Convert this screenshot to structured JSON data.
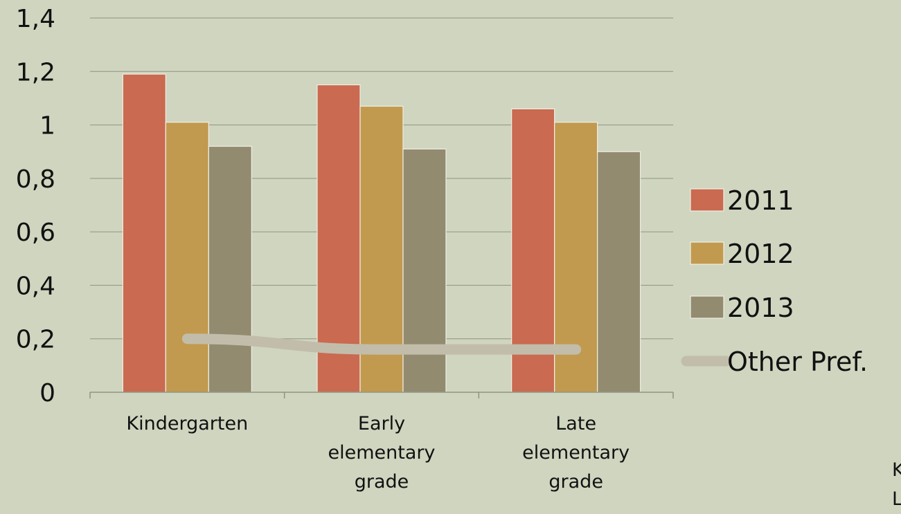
{
  "chart_data": {
    "type": "bar",
    "categories": [
      [
        "Kindergarten"
      ],
      [
        "Early",
        "elementary",
        "grade"
      ],
      [
        "Late",
        "elementary",
        "grade"
      ]
    ],
    "series": [
      {
        "name": "2011",
        "type": "bar",
        "color": "#c96a51",
        "values": [
          1.19,
          1.15,
          1.06
        ]
      },
      {
        "name": "2012",
        "type": "bar",
        "color": "#c19a4f",
        "values": [
          1.01,
          1.07,
          1.01
        ]
      },
      {
        "name": "2013",
        "type": "bar",
        "color": "#938b70",
        "values": [
          0.92,
          0.91,
          0.9
        ]
      },
      {
        "name": "Other  Pref.",
        "type": "line",
        "color": "#c2bdaa",
        "values": [
          0.2,
          0.16,
          0.16
        ]
      }
    ],
    "yticks": [
      "0",
      "0,2",
      "0,4",
      "0,6",
      "0,8",
      "1",
      "1,2",
      "1,4"
    ],
    "ylim": [
      0,
      1.4
    ],
    "grid": true,
    "legend_position": "right",
    "title": "",
    "xlabel": "",
    "ylabel": "",
    "cutoff_text": [
      "K",
      "L"
    ]
  }
}
